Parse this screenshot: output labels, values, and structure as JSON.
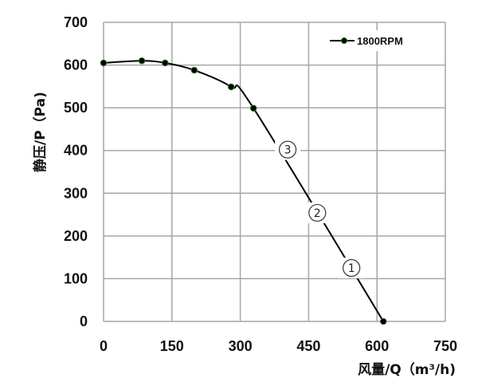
{
  "chart_data": {
    "type": "line",
    "title": "",
    "xlabel": "风量/Q（m³/h)",
    "ylabel": "静压/P（Pa)",
    "xlim": [
      0,
      750
    ],
    "ylim": [
      0,
      700
    ],
    "x_ticks": [
      0,
      150,
      300,
      450,
      600,
      750
    ],
    "y_ticks": [
      0,
      100,
      200,
      300,
      400,
      500,
      600,
      700
    ],
    "grid": true,
    "legend_position": "top-right",
    "series": [
      {
        "name": "1800RPM",
        "color": "#000000",
        "marker_edge_color": "#3a7d2c",
        "x": [
          0,
          84,
          135,
          199,
          280,
          329,
          614
        ],
        "values": [
          605,
          610,
          605,
          588,
          549,
          499,
          0
        ]
      }
    ],
    "annotations": [
      {
        "label": "③",
        "x": 404,
        "y": 402
      },
      {
        "label": "②",
        "x": 469,
        "y": 254
      },
      {
        "label": "①",
        "x": 544,
        "y": 125
      }
    ]
  },
  "labels": {
    "x_ticks": [
      "0",
      "150",
      "300",
      "450",
      "600",
      "750"
    ],
    "y_ticks": [
      "0",
      "100",
      "200",
      "300",
      "400",
      "500",
      "600",
      "700"
    ],
    "xlabel": "风量/Q（m³/h)",
    "ylabel": "静压/P（Pa)",
    "legend": "1800RPM",
    "markers": [
      "③",
      "②",
      "①"
    ]
  }
}
